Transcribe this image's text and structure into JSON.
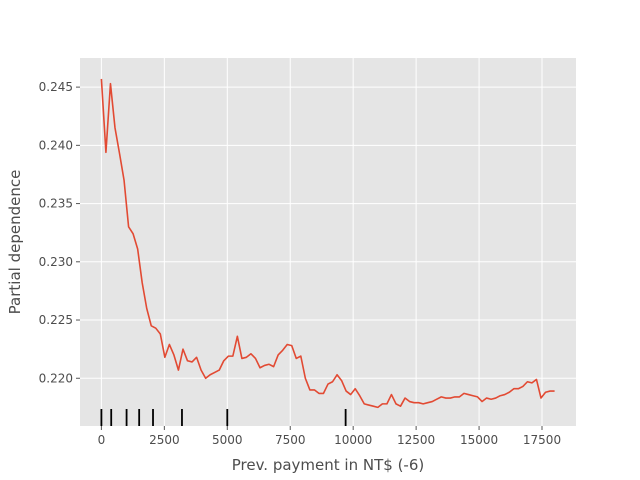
{
  "chart_data": {
    "type": "line",
    "title": "",
    "xlabel": "Prev. payment in NT$ (-6)",
    "ylabel": "Partial dependence",
    "xlim": [
      -850,
      18850
    ],
    "ylim": [
      0.2159,
      0.2475
    ],
    "xticks": [
      0,
      2500,
      5000,
      7500,
      10000,
      12500,
      15000,
      17500
    ],
    "xtick_labels": [
      "0",
      "2500",
      "5000",
      "7500",
      "10000",
      "12500",
      "15000",
      "17500"
    ],
    "yticks": [
      0.22,
      0.225,
      0.23,
      0.235,
      0.24,
      0.245
    ],
    "ytick_labels": [
      "0.220",
      "0.225",
      "0.230",
      "0.235",
      "0.240",
      "0.245"
    ],
    "grid": true,
    "colors": {
      "background": "#e5e5e5",
      "grid": "#ffffff",
      "line": "#e24a33",
      "rug": "#000000",
      "text": "#4d4d4d"
    },
    "series": [
      {
        "x": [
          0,
          180,
          360,
          540,
          720,
          900,
          1080,
          1260,
          1440,
          1620,
          1800,
          1980,
          2160,
          2340,
          2520,
          2700,
          2880,
          3060,
          3240,
          3420,
          3600,
          3780,
          3960,
          4140,
          4320,
          4500,
          4680,
          4860,
          5040,
          5220,
          5400,
          5580,
          5760,
          5940,
          6120,
          6300,
          6480,
          6660,
          6840,
          7020,
          7200,
          7380,
          7560,
          7740,
          7920,
          8100,
          8280,
          8460,
          8640,
          8820,
          9000,
          9180,
          9360,
          9540,
          9720,
          9900,
          10080,
          10260,
          10440,
          10620,
          10800,
          10980,
          11160,
          11340,
          11520,
          11700,
          11880,
          12060,
          12240,
          12420,
          12600,
          12780,
          12960,
          13140,
          13320,
          13500,
          13680,
          13860,
          14040,
          14220,
          14400,
          14580,
          14760,
          14940,
          15120,
          15300,
          15480,
          15660,
          15840,
          16020,
          16200,
          16380,
          16560,
          16740,
          16920,
          17100,
          17280,
          17460,
          17640,
          17820,
          18000
        ],
        "values": [
          0.2457,
          0.2394,
          0.2453,
          0.2415,
          0.2393,
          0.237,
          0.233,
          0.2324,
          0.2311,
          0.2282,
          0.226,
          0.2245,
          0.2243,
          0.2238,
          0.2218,
          0.2229,
          0.222,
          0.2207,
          0.2225,
          0.2215,
          0.2214,
          0.2218,
          0.2207,
          0.22,
          0.2203,
          0.2205,
          0.2207,
          0.2215,
          0.2219,
          0.2219,
          0.2236,
          0.2217,
          0.2218,
          0.2221,
          0.2217,
          0.2209,
          0.2211,
          0.2212,
          0.221,
          0.222,
          0.2224,
          0.2229,
          0.2228,
          0.2217,
          0.2219,
          0.22,
          0.219,
          0.219,
          0.2187,
          0.2187,
          0.2195,
          0.2197,
          0.2203,
          0.2198,
          0.2189,
          0.2186,
          0.2191,
          0.2185,
          0.2178,
          0.2177,
          0.2176,
          0.2175,
          0.2178,
          0.2178,
          0.2186,
          0.2178,
          0.2176,
          0.2183,
          0.218,
          0.2179,
          0.2179,
          0.2178,
          0.2179,
          0.218,
          0.2182,
          0.2184,
          0.2183,
          0.2183,
          0.2184,
          0.2184,
          0.2187,
          0.2186,
          0.2185,
          0.2184,
          0.218,
          0.2183,
          0.2182,
          0.2183,
          0.2185,
          0.2186,
          0.2188,
          0.2191,
          0.2191,
          0.2193,
          0.2197,
          0.2196,
          0.2199,
          0.2183,
          0.2188,
          0.2189,
          0.2189
        ]
      }
    ],
    "rug_deciles": [
      0,
      390,
      1000,
      1500,
      2050,
      3200,
      5000,
      9700
    ]
  }
}
